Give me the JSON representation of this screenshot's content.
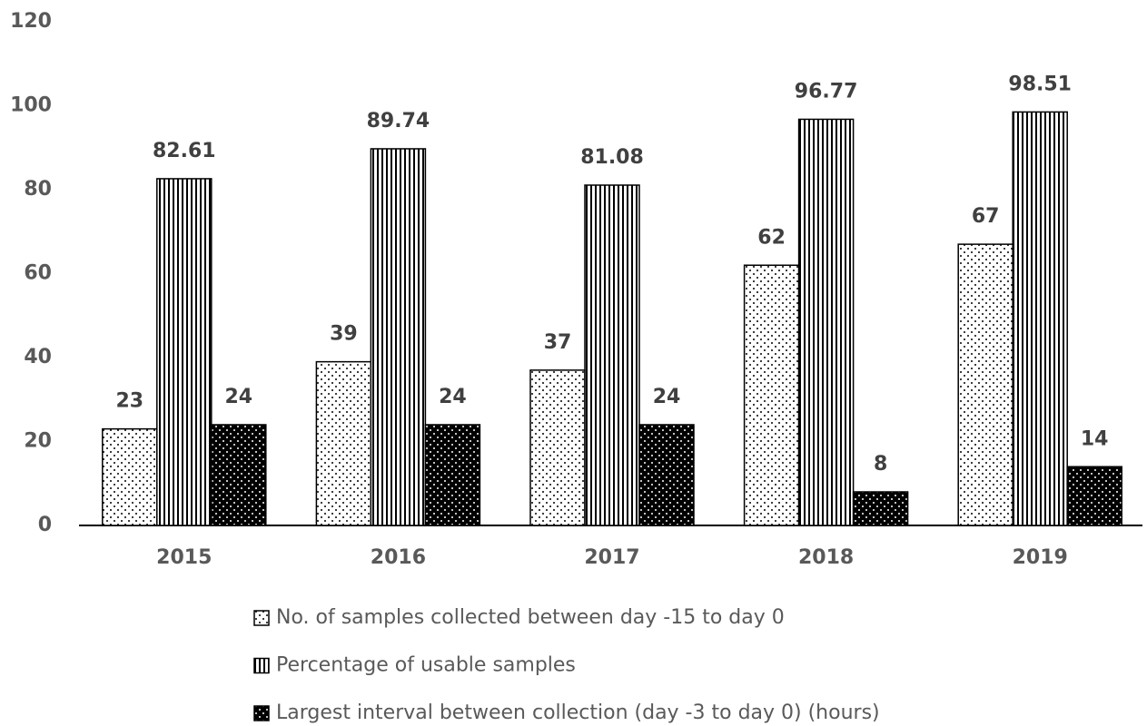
{
  "chart_data": {
    "type": "bar",
    "categories": [
      "2015",
      "2016",
      "2017",
      "2018",
      "2019"
    ],
    "series": [
      {
        "name": "No. of samples collected between day -15 to day 0",
        "color": "#ffffff",
        "values": [
          23,
          39,
          37,
          62,
          67
        ]
      },
      {
        "name": "Percentage of usable samples",
        "color": "#ffffff",
        "values": [
          82.61,
          89.74,
          81.08,
          96.77,
          98.51
        ]
      },
      {
        "name": "Largest interval between collection (day -3 to day 0) (hours)",
        "color": "#000000",
        "values": [
          24,
          24,
          24,
          8,
          14
        ]
      }
    ],
    "ylim": [
      0,
      120
    ],
    "yticks": [
      0,
      20,
      40,
      60,
      80,
      100,
      120
    ],
    "grid": false,
    "legend": "bottom"
  }
}
